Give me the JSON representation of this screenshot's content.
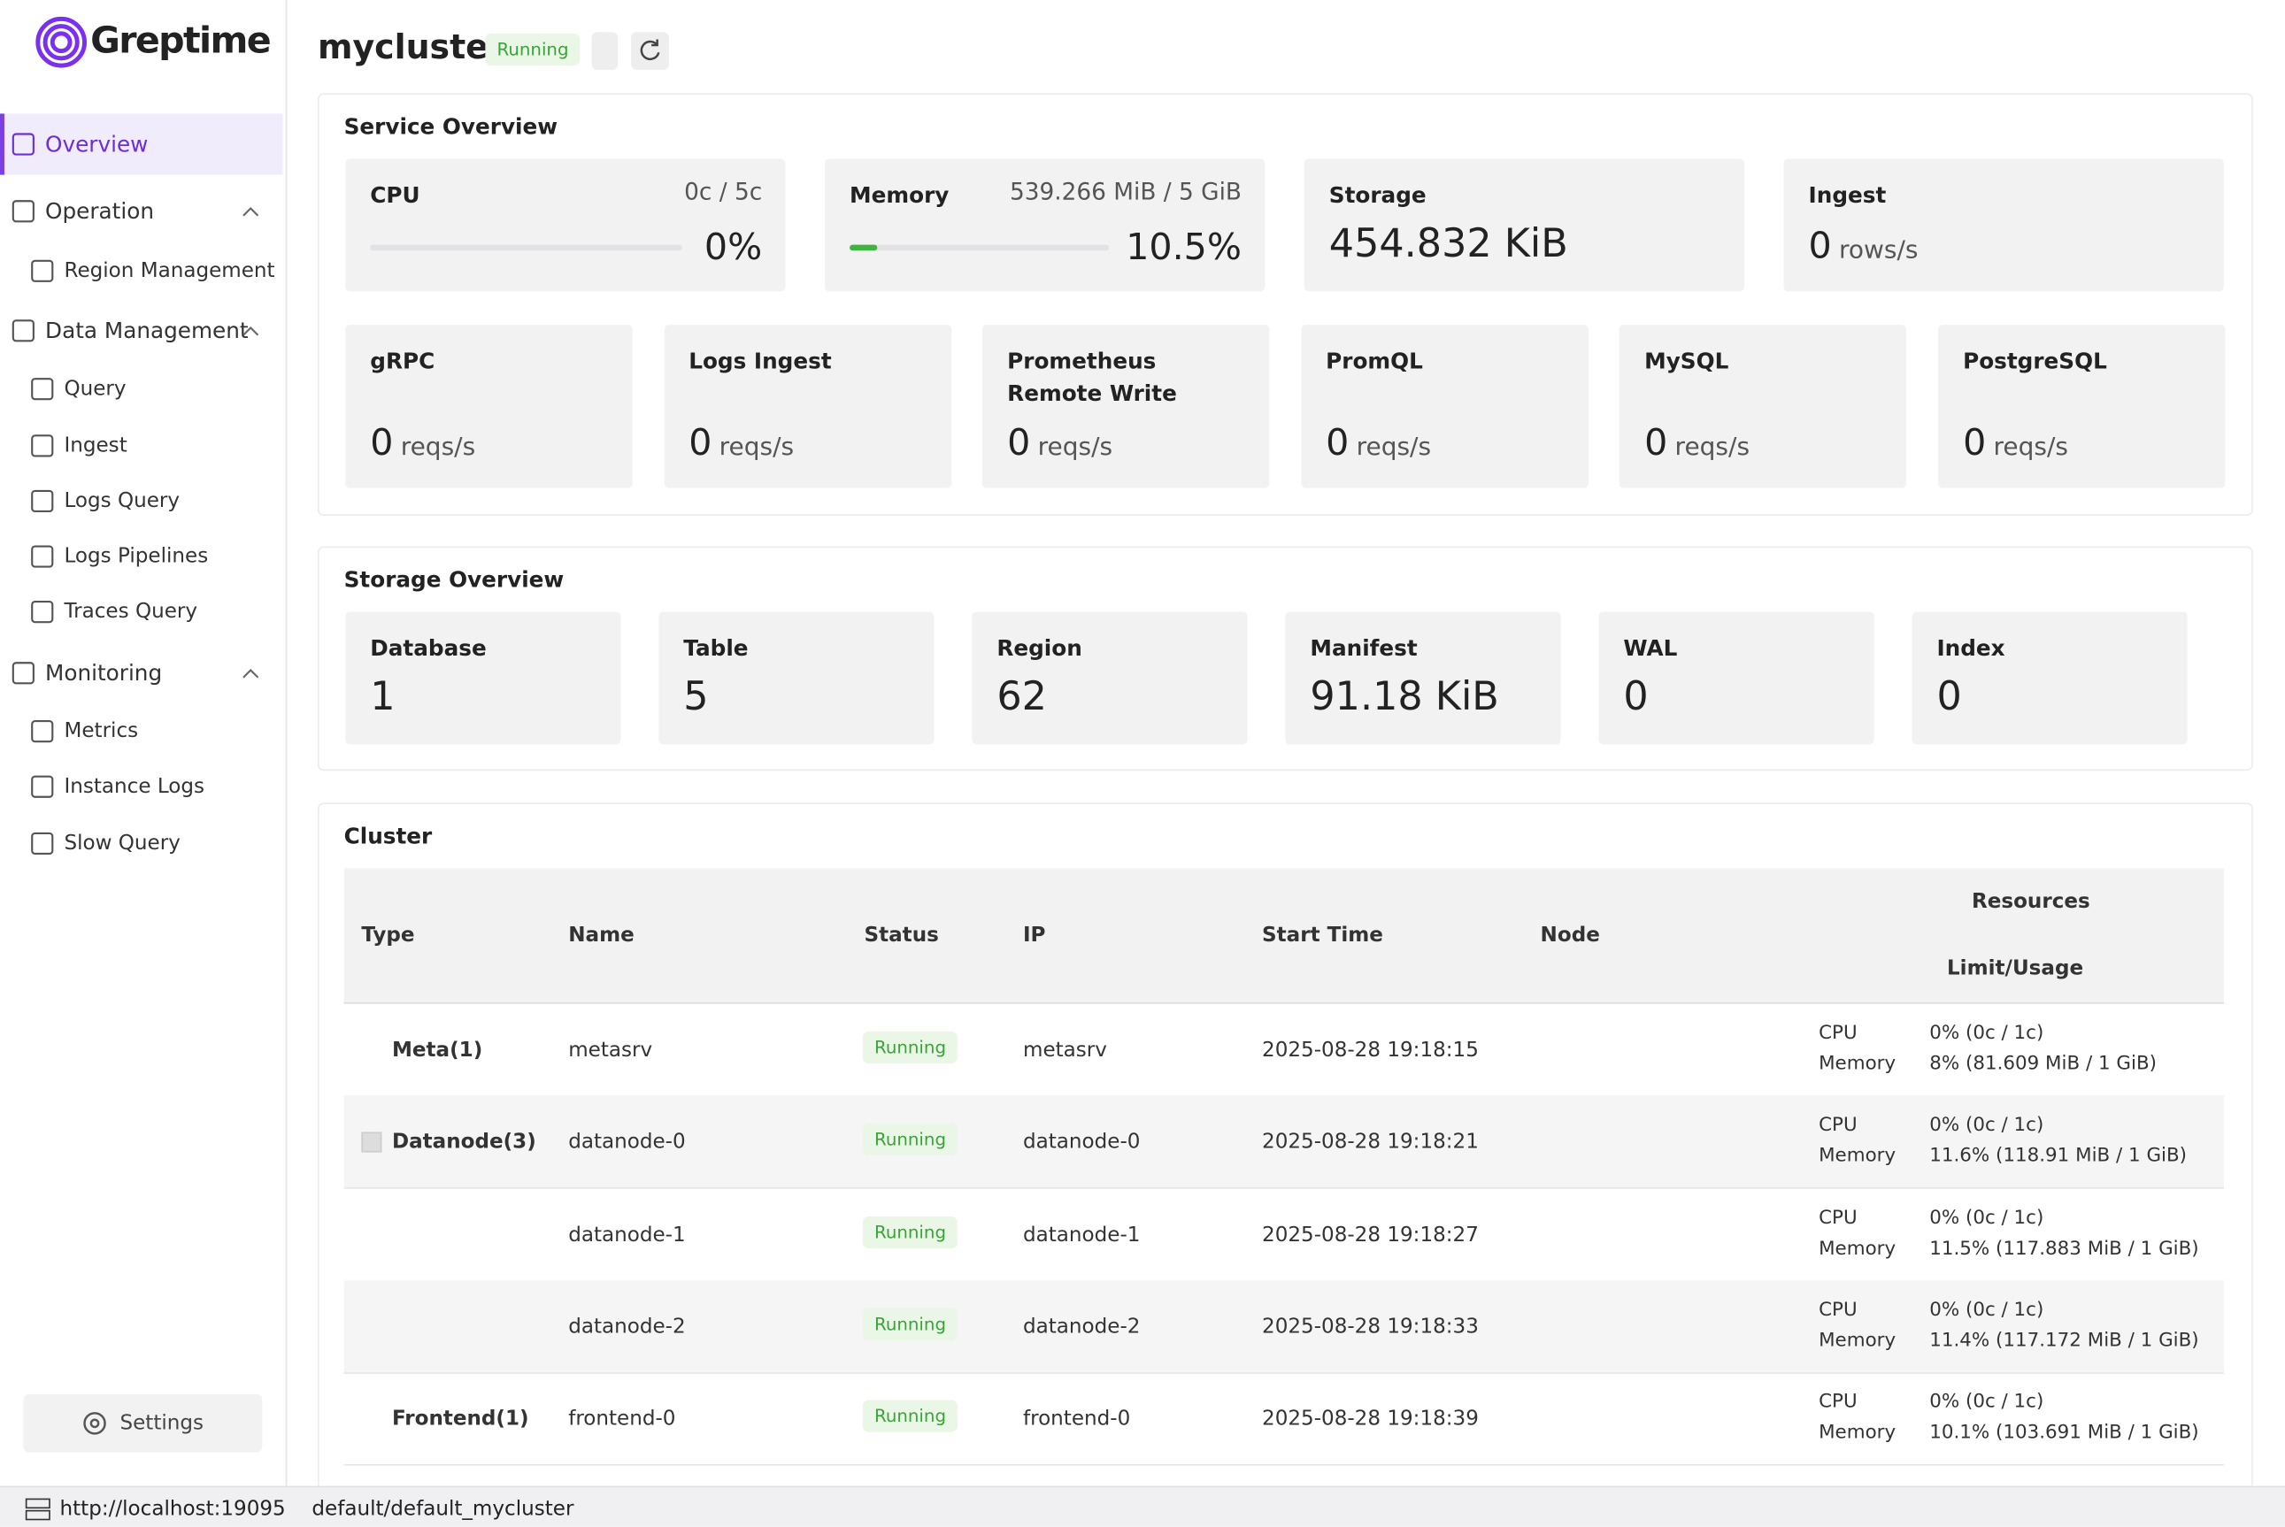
{
  "sidebar": {
    "logo": "Greptime",
    "items": [
      {
        "label": "Overview",
        "level": 0,
        "active": true
      },
      {
        "label": "Operation",
        "level": 0,
        "group": true
      },
      {
        "label": "Region Management",
        "level": 1
      },
      {
        "label": "Data Management",
        "level": 0,
        "group": true
      },
      {
        "label": "Query",
        "level": 1
      },
      {
        "label": "Ingest",
        "level": 1
      },
      {
        "label": "Logs Query",
        "level": 1
      },
      {
        "label": "Logs Pipelines",
        "level": 1
      },
      {
        "label": "Traces Query",
        "level": 1
      },
      {
        "label": "Monitoring",
        "level": 0,
        "group": true
      },
      {
        "label": "Metrics",
        "level": 1
      },
      {
        "label": "Instance Logs",
        "level": 1
      },
      {
        "label": "Slow Query",
        "level": 1
      }
    ],
    "settings": "Settings"
  },
  "header": {
    "title": "mycluster",
    "status": "Running"
  },
  "service_overview": {
    "title": "Service Overview",
    "cpu": {
      "label": "CPU",
      "usage": "0c / 5c",
      "percent": {
        "value": 0,
        "label": "0%"
      }
    },
    "memory": {
      "label": "Memory",
      "usage": "539.266 MiB / 5 GiB",
      "percent": {
        "value": 10.5,
        "label": "10.5%"
      }
    },
    "storage": {
      "label": "Storage",
      "value": "454.832 KiB"
    },
    "ingest": {
      "label": "Ingest",
      "value": "0",
      "unit": "rows/s"
    },
    "protocols": [
      {
        "label": "gRPC",
        "value": "0",
        "unit": "reqs/s"
      },
      {
        "label": "Logs Ingest",
        "value": "0",
        "unit": "reqs/s"
      },
      {
        "label": "Prometheus Remote Write",
        "value": "0",
        "unit": "reqs/s"
      },
      {
        "label": "PromQL",
        "value": "0",
        "unit": "reqs/s"
      },
      {
        "label": "MySQL",
        "value": "0",
        "unit": "reqs/s"
      },
      {
        "label": "PostgreSQL",
        "value": "0",
        "unit": "reqs/s"
      }
    ]
  },
  "storage_overview": {
    "title": "Storage Overview",
    "cards": [
      {
        "label": "Database",
        "value": "1"
      },
      {
        "label": "Table",
        "value": "5"
      },
      {
        "label": "Region",
        "value": "62"
      },
      {
        "label": "Manifest",
        "value": "91.18 KiB"
      },
      {
        "label": "WAL",
        "value": "0"
      },
      {
        "label": "Index",
        "value": "0"
      }
    ]
  },
  "cluster": {
    "title": "Cluster",
    "columns": [
      "Type",
      "Name",
      "Status",
      "IP",
      "Start Time",
      "Node"
    ],
    "resources_header": "Resources",
    "resources_sub": "Limit/Usage",
    "rows": [
      {
        "type": "Meta(1)",
        "name": "metasrv",
        "status": "Running",
        "ip": "metasrv",
        "start_time": "2025-08-28 19:18:15",
        "cpu_label": "CPU",
        "cpu": "0% (0c / 1c)",
        "memory_label": "Memory",
        "memory": "8% (81.609 MiB / 1 GiB)"
      },
      {
        "type": "Datanode(3)",
        "name": "datanode-0",
        "status": "Running",
        "ip": "datanode-0",
        "start_time": "2025-08-28 19:18:21",
        "cpu_label": "CPU",
        "cpu": "0% (0c / 1c)",
        "memory_label": "Memory",
        "memory": "11.6% (118.91 MiB / 1 GiB)"
      },
      {
        "type": null,
        "name": "datanode-1",
        "status": "Running",
        "ip": "datanode-1",
        "start_time": "2025-08-28 19:18:27",
        "cpu_label": "CPU",
        "cpu": "0% (0c / 1c)",
        "memory_label": "Memory",
        "memory": "11.5% (117.883 MiB / 1 GiB)"
      },
      {
        "type": null,
        "name": "datanode-2",
        "status": "Running",
        "ip": "datanode-2",
        "start_time": "2025-08-28 19:18:33",
        "cpu_label": "CPU",
        "cpu": "0% (0c / 1c)",
        "memory_label": "Memory",
        "memory": "11.4% (117.172 MiB / 1 GiB)"
      },
      {
        "type": "Frontend(1)",
        "name": "frontend-0",
        "status": "Running",
        "ip": "frontend-0",
        "start_time": "2025-08-28 19:18:39",
        "cpu_label": "CPU",
        "cpu": "0% (0c / 1c)",
        "memory_label": "Memory",
        "memory": "10.1% (103.691 MiB / 1 GiB)"
      }
    ]
  },
  "footer": {
    "url": "http://localhost:19095",
    "namespace": "default/default_mycluster"
  }
}
